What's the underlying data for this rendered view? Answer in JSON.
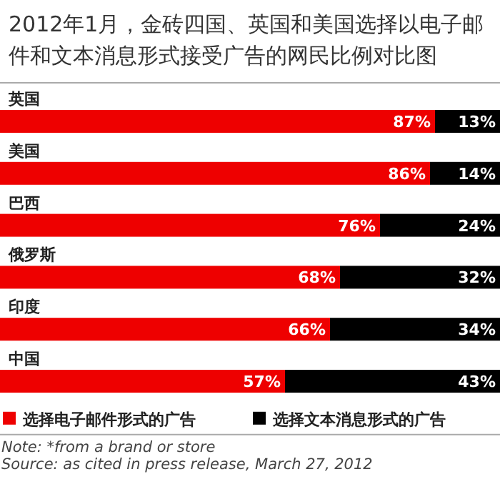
{
  "chart_data": {
    "type": "bar",
    "orientation": "horizontal",
    "stacked": true,
    "title": "2012年1月，金砖四国、英国和美国选择以电子邮件和文本消息形式接受广告的网民比例对比图",
    "categories": [
      "英国",
      "美国",
      "巴西",
      "俄罗斯",
      "印度",
      "中国"
    ],
    "xlim": [
      0,
      100
    ],
    "legend": "bottom",
    "series": [
      {
        "name": "选择电子邮件形式的广告",
        "color": "#ee0000",
        "values": [
          87,
          86,
          76,
          68,
          66,
          57
        ],
        "value_labels": [
          "87%",
          "86%",
          "76%",
          "68%",
          "66%",
          "57%"
        ]
      },
      {
        "name": "选择文本消息形式的广告",
        "color": "#000000",
        "values": [
          13,
          14,
          24,
          32,
          34,
          43
        ],
        "value_labels": [
          "13%",
          "14%",
          "24%",
          "32%",
          "34%",
          "43%"
        ]
      }
    ],
    "annotations": [
      "Note: *from a brand or store",
      "Source: as cited in press release, March 27, 2012"
    ]
  }
}
